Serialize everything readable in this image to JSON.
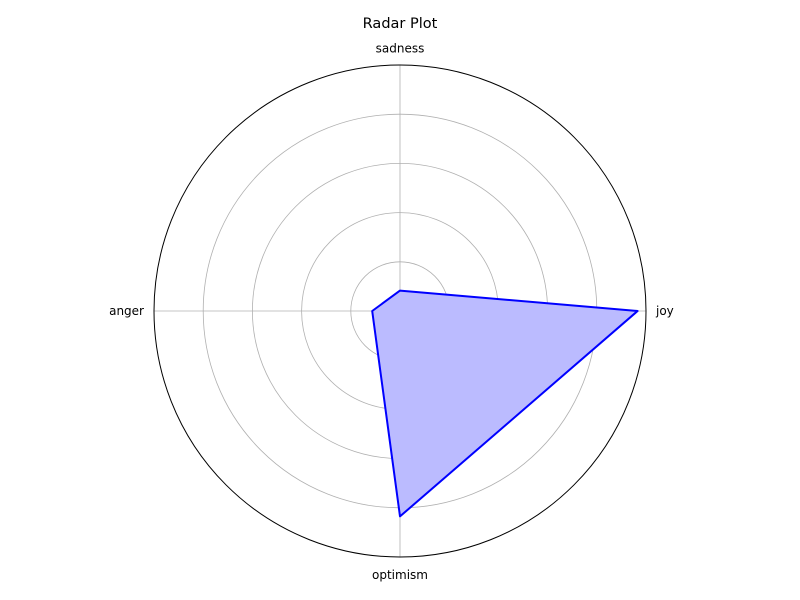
{
  "chart_data": {
    "type": "radar",
    "title": "Radar Plot",
    "categories": [
      "joy",
      "sadness",
      "anger",
      "optimism"
    ],
    "series": [
      {
        "values": [
          0.966,
          0.083,
          0.113,
          0.835
        ]
      }
    ],
    "rlim": [
      0,
      1
    ],
    "rgrid": [
      0.2,
      0.4,
      0.6,
      0.8
    ],
    "yticklabels_visible": false,
    "grid": true,
    "colors": {
      "line": "#0000ff",
      "fill": "#bbbbff",
      "grid": "#b0b0b0",
      "frame": "#000000"
    }
  }
}
